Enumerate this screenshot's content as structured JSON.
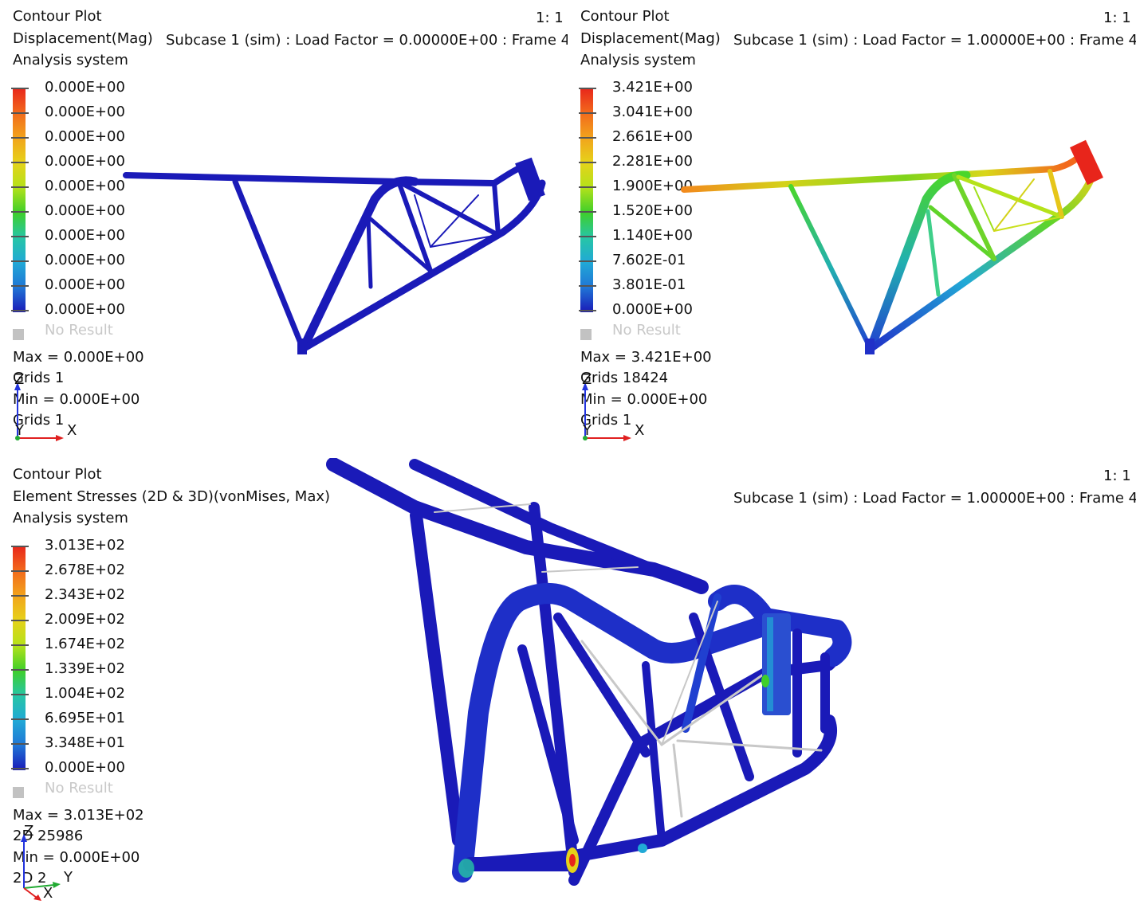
{
  "panels": [
    {
      "title": "Contour Plot",
      "result": "Displacement(Mag)",
      "subcase": "Subcase 1 (sim) : Load Factor =  0.00000E+00 : Frame 4",
      "system": "Analysis system",
      "scale": "1: 1",
      "legend": [
        "0.000E+00",
        "0.000E+00",
        "0.000E+00",
        "0.000E+00",
        "0.000E+00",
        "0.000E+00",
        "0.000E+00",
        "0.000E+00",
        "0.000E+00",
        "0.000E+00"
      ],
      "no_result": "No Result",
      "max": "Max =  0.000E+00",
      "max_loc": "Grids 1",
      "min": "Min =  0.000E+00",
      "min_loc": "Grids 1",
      "axes": {
        "up": "Z",
        "right": "X",
        "in": "Y"
      }
    },
    {
      "title": "Contour Plot",
      "result": "Displacement(Mag)",
      "subcase": "Subcase 1 (sim) : Load Factor =  1.00000E+00 : Frame 4",
      "system": "Analysis system",
      "scale": "1: 1",
      "legend": [
        "3.421E+00",
        "3.041E+00",
        "2.661E+00",
        "2.281E+00",
        "1.900E+00",
        "1.520E+00",
        "1.140E+00",
        "7.602E-01",
        "3.801E-01",
        "0.000E+00"
      ],
      "no_result": "No Result",
      "max": "Max =  3.421E+00",
      "max_loc": "Grids 18424",
      "min": "Min =  0.000E+00",
      "min_loc": "Grids 1",
      "axes": {
        "up": "Z",
        "right": "X",
        "in": "Y"
      }
    },
    {
      "title": "Contour Plot",
      "result": "Element Stresses (2D & 3D)(vonMises, Max)",
      "subcase": "Subcase 1 (sim) : Load Factor =  1.00000E+00 : Frame 4",
      "system": "Analysis system",
      "scale": "1: 1",
      "legend": [
        "3.013E+02",
        "2.678E+02",
        "2.343E+02",
        "2.009E+02",
        "1.674E+02",
        "1.339E+02",
        "1.004E+02",
        "6.695E+01",
        "3.348E+01",
        "0.000E+00"
      ],
      "no_result": "No Result",
      "max": "Max =  3.013E+02",
      "max_loc": "2D 25986",
      "min": "Min =  0.000E+00",
      "min_loc": "2D 2",
      "axes": {
        "up": "Z",
        "right": "Y",
        "in": "X"
      }
    }
  ],
  "colors": {
    "low": "#1b1bc8",
    "contour_scale": [
      "#e8251b",
      "#f2691c",
      "#f2a31c",
      "#e6d21a",
      "#b5e21a",
      "#3fcf2a",
      "#26c6a5",
      "#21a9d6",
      "#2076d6",
      "#1a1ab8"
    ],
    "no_result": "#c2c2c2",
    "rod": "#c8c8c8"
  }
}
